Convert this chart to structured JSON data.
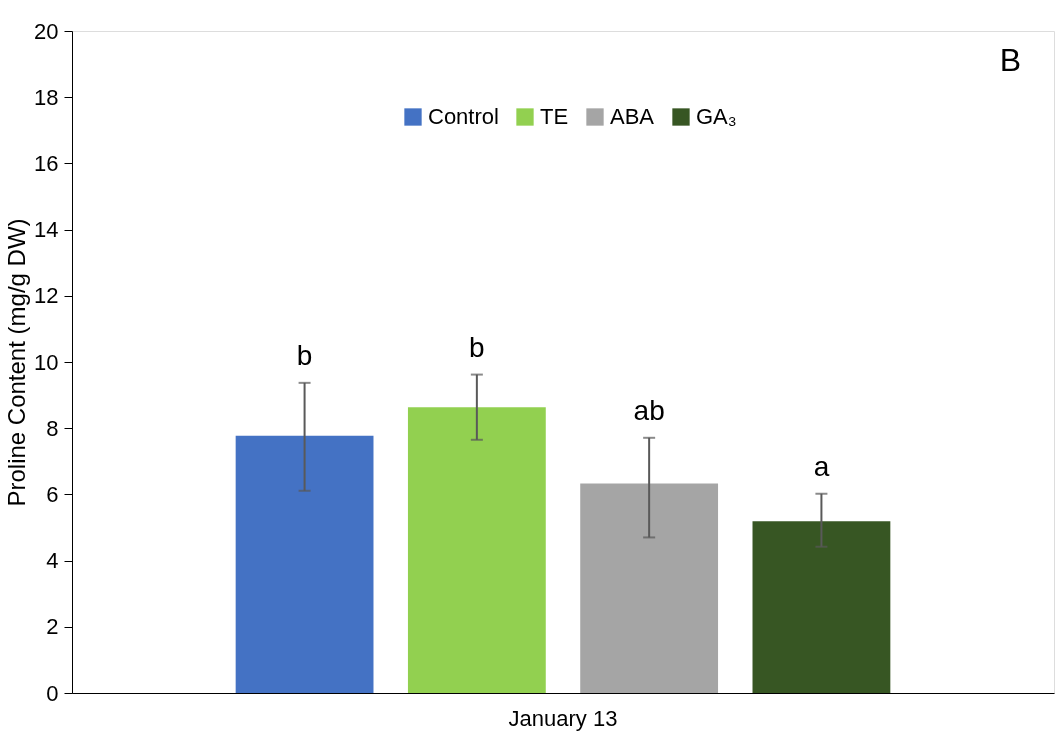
{
  "chart_data": {
    "type": "bar",
    "categories": [
      "January 13"
    ],
    "ylabel": "Proline Content (mg/g DW)",
    "ylim": [
      0,
      20
    ],
    "yticks": [
      0,
      2,
      4,
      6,
      8,
      10,
      12,
      14,
      16,
      18,
      20
    ],
    "grid": false,
    "legend": "top",
    "series": [
      {
        "name": "Control",
        "color": "#4472c4",
        "values": [
          7.77
        ],
        "errors": [
          [
            6.11,
            9.37
          ]
        ]
      },
      {
        "name": "TE",
        "color": "#92d050",
        "values": [
          8.63
        ],
        "errors": [
          [
            7.65,
            9.62
          ]
        ]
      },
      {
        "name": "ABA",
        "color": "#a5a5a5",
        "values": [
          6.33
        ],
        "errors": [
          [
            4.7,
            7.71
          ]
        ]
      },
      {
        "name": "GA₃",
        "color": "#375623",
        "values": [
          5.19
        ],
        "errors": [
          [
            4.42,
            6.02
          ]
        ]
      }
    ],
    "annotations": [
      "b",
      "b",
      "ab",
      "a",
      "B"
    ]
  }
}
